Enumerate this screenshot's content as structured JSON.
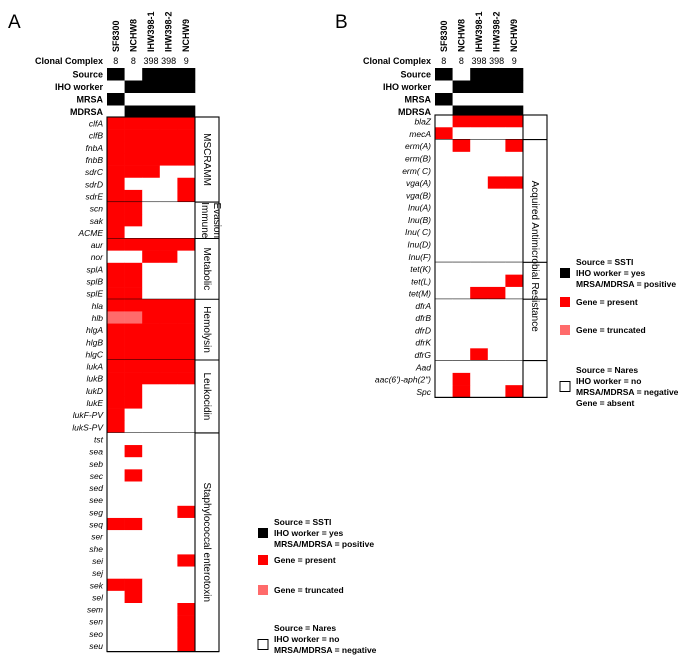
{
  "colors": {
    "present": "#ff0000",
    "truncated": "#ff6b6b",
    "meta": "#000000",
    "absent": "#ffffff"
  },
  "panels": [
    {
      "letter": "A",
      "strains": [
        "SF8300",
        "NCHW8",
        "IHW398-1",
        "IHW398-2",
        "NCHW9"
      ],
      "clonal_complex": {
        "label": "Clonal Complex",
        "values": [
          "8",
          "8",
          "398",
          "398",
          "9"
        ]
      },
      "meta_rows": [
        {
          "label": "Source",
          "values": [
            1,
            0,
            1,
            1,
            1
          ]
        },
        {
          "label": "IHO worker",
          "values": [
            0,
            1,
            1,
            1,
            1
          ]
        },
        {
          "label": "MRSA",
          "values": [
            1,
            0,
            0,
            0,
            0
          ]
        },
        {
          "label": "MDRSA",
          "values": [
            0,
            1,
            1,
            1,
            1
          ]
        }
      ],
      "groups": [
        {
          "label": "MSCRAMM",
          "label2": "",
          "genes": [
            {
              "name": "clfA",
              "v": [
                1,
                1,
                1,
                1,
                1
              ]
            },
            {
              "name": "clfB",
              "v": [
                1,
                1,
                1,
                1,
                1
              ]
            },
            {
              "name": "fnbA",
              "v": [
                1,
                1,
                1,
                1,
                1
              ]
            },
            {
              "name": "fnbB",
              "v": [
                1,
                1,
                1,
                1,
                1
              ]
            },
            {
              "name": "sdrC",
              "v": [
                1,
                1,
                1,
                0,
                0
              ]
            },
            {
              "name": "sdrD",
              "v": [
                1,
                0,
                0,
                0,
                1
              ]
            },
            {
              "name": "sdrE",
              "v": [
                1,
                1,
                0,
                0,
                1
              ]
            }
          ]
        },
        {
          "label": "Immune",
          "label2": "Evasion",
          "genes": [
            {
              "name": "scn",
              "v": [
                1,
                1,
                0,
                0,
                0
              ]
            },
            {
              "name": "sak",
              "v": [
                1,
                1,
                0,
                0,
                0
              ]
            },
            {
              "name": "ACME",
              "v": [
                1,
                0,
                0,
                0,
                0
              ]
            }
          ]
        },
        {
          "label": "Metabolic",
          "label2": "",
          "genes": [
            {
              "name": "aur",
              "v": [
                1,
                1,
                1,
                1,
                1
              ]
            },
            {
              "name": "nor",
              "v": [
                0,
                0,
                1,
                1,
                0
              ]
            },
            {
              "name": "splA",
              "v": [
                1,
                1,
                0,
                0,
                0
              ]
            },
            {
              "name": "splB",
              "v": [
                1,
                1,
                0,
                0,
                0
              ]
            },
            {
              "name": "splE",
              "v": [
                1,
                1,
                0,
                0,
                0
              ]
            }
          ]
        },
        {
          "label": "Hemolysin",
          "label2": "",
          "genes": [
            {
              "name": "hla",
              "v": [
                1,
                1,
                1,
                1,
                1
              ]
            },
            {
              "name": "hlb",
              "v": [
                2,
                2,
                1,
                1,
                1
              ]
            },
            {
              "name": "hlgA",
              "v": [
                1,
                1,
                1,
                1,
                1
              ]
            },
            {
              "name": "hlgB",
              "v": [
                1,
                1,
                1,
                1,
                1
              ]
            },
            {
              "name": "hlgC",
              "v": [
                1,
                1,
                1,
                1,
                1
              ]
            }
          ]
        },
        {
          "label": "Leukocidin",
          "label2": "",
          "genes": [
            {
              "name": "lukA",
              "v": [
                1,
                1,
                1,
                1,
                1
              ]
            },
            {
              "name": "lukB",
              "v": [
                1,
                1,
                1,
                1,
                1
              ]
            },
            {
              "name": "lukD",
              "v": [
                1,
                1,
                0,
                0,
                0
              ]
            },
            {
              "name": "lukE",
              "v": [
                1,
                1,
                0,
                0,
                0
              ]
            },
            {
              "name": "lukF-PV",
              "v": [
                1,
                0,
                0,
                0,
                0
              ]
            },
            {
              "name": "lukS-PV",
              "v": [
                1,
                0,
                0,
                0,
                0
              ]
            }
          ]
        },
        {
          "label": "Staphylococcal enterotoxin",
          "label2": "",
          "genes": [
            {
              "name": "tst",
              "v": [
                0,
                0,
                0,
                0,
                0
              ]
            },
            {
              "name": "sea",
              "v": [
                0,
                1,
                0,
                0,
                0
              ]
            },
            {
              "name": "seb",
              "v": [
                0,
                0,
                0,
                0,
                0
              ]
            },
            {
              "name": "sec",
              "v": [
                0,
                1,
                0,
                0,
                0
              ]
            },
            {
              "name": "sed",
              "v": [
                0,
                0,
                0,
                0,
                0
              ]
            },
            {
              "name": "see",
              "v": [
                0,
                0,
                0,
                0,
                0
              ]
            },
            {
              "name": "seg",
              "v": [
                0,
                0,
                0,
                0,
                1
              ]
            },
            {
              "name": "seq",
              "v": [
                1,
                1,
                0,
                0,
                0
              ]
            },
            {
              "name": "ser",
              "v": [
                0,
                0,
                0,
                0,
                0
              ]
            },
            {
              "name": "she",
              "v": [
                0,
                0,
                0,
                0,
                0
              ]
            },
            {
              "name": "sei",
              "v": [
                0,
                0,
                0,
                0,
                1
              ]
            },
            {
              "name": "sej",
              "v": [
                0,
                0,
                0,
                0,
                0
              ]
            },
            {
              "name": "sek",
              "v": [
                1,
                1,
                0,
                0,
                0
              ]
            },
            {
              "name": "sel",
              "v": [
                0,
                1,
                0,
                0,
                0
              ]
            },
            {
              "name": "sem",
              "v": [
                0,
                0,
                0,
                0,
                1
              ]
            },
            {
              "name": "sen",
              "v": [
                0,
                0,
                0,
                0,
                1
              ]
            },
            {
              "name": "seo",
              "v": [
                0,
                0,
                0,
                0,
                1
              ]
            },
            {
              "name": "seu",
              "v": [
                0,
                0,
                0,
                0,
                1
              ]
            }
          ]
        }
      ]
    },
    {
      "letter": "B",
      "strains": [
        "SF8300",
        "NCHW8",
        "IHW398-1",
        "IHW398-2",
        "NCHW9"
      ],
      "clonal_complex": {
        "label": "Clonal Complex",
        "values": [
          "8",
          "8",
          "398",
          "398",
          "9"
        ]
      },
      "meta_rows": [
        {
          "label": "Source",
          "values": [
            1,
            0,
            1,
            1,
            1
          ]
        },
        {
          "label": "IHO worker",
          "values": [
            0,
            1,
            1,
            1,
            1
          ]
        },
        {
          "label": "MRSA",
          "values": [
            1,
            0,
            0,
            0,
            0
          ]
        },
        {
          "label": "MDRSA",
          "values": [
            0,
            1,
            1,
            1,
            1
          ]
        }
      ],
      "side_label": "Acquired Antimicrobial Resistance",
      "groups": [
        {
          "genes": [
            {
              "name": "blaZ",
              "v": [
                0,
                1,
                1,
                1,
                1
              ]
            },
            {
              "name": "mecA",
              "v": [
                1,
                0,
                0,
                0,
                0
              ]
            }
          ]
        },
        {
          "genes": [
            {
              "name": "erm(A)",
              "v": [
                0,
                1,
                0,
                0,
                1
              ]
            },
            {
              "name": "erm(B)",
              "v": [
                0,
                0,
                0,
                0,
                0
              ]
            },
            {
              "name": "erm( C)",
              "v": [
                0,
                0,
                0,
                0,
                0
              ]
            },
            {
              "name": "vga(A)",
              "v": [
                0,
                0,
                0,
                1,
                1
              ]
            },
            {
              "name": "vga(B)",
              "v": [
                0,
                0,
                0,
                0,
                0
              ]
            },
            {
              "name": "Inu(A)",
              "v": [
                0,
                0,
                0,
                0,
                0
              ]
            },
            {
              "name": "Inu(B)",
              "v": [
                0,
                0,
                0,
                0,
                0
              ]
            },
            {
              "name": "Inu( C)",
              "v": [
                0,
                0,
                0,
                0,
                0
              ]
            },
            {
              "name": "Inu(D)",
              "v": [
                0,
                0,
                0,
                0,
                0
              ]
            },
            {
              "name": "Inu(F)",
              "v": [
                0,
                0,
                0,
                0,
                0
              ]
            }
          ]
        },
        {
          "genes": [
            {
              "name": "tet(K)",
              "v": [
                0,
                0,
                0,
                0,
                0
              ]
            },
            {
              "name": "tet(L)",
              "v": [
                0,
                0,
                0,
                0,
                1
              ]
            },
            {
              "name": "tet(M)",
              "v": [
                0,
                0,
                1,
                1,
                0
              ]
            }
          ]
        },
        {
          "genes": [
            {
              "name": "dfrA",
              "v": [
                0,
                0,
                0,
                0,
                0
              ]
            },
            {
              "name": "dfrB",
              "v": [
                0,
                0,
                0,
                0,
                0
              ]
            },
            {
              "name": "dfrD",
              "v": [
                0,
                0,
                0,
                0,
                0
              ]
            },
            {
              "name": "dfrK",
              "v": [
                0,
                0,
                0,
                0,
                0
              ]
            },
            {
              "name": "dfrG",
              "v": [
                0,
                0,
                1,
                0,
                0
              ]
            }
          ]
        },
        {
          "genes": [
            {
              "name": "Aad",
              "v": [
                0,
                0,
                0,
                0,
                0
              ]
            },
            {
              "name": "aac(6')-aph(2\")",
              "v": [
                0,
                1,
                0,
                0,
                0
              ]
            },
            {
              "name": "Spc",
              "v": [
                0,
                1,
                0,
                0,
                1
              ]
            }
          ]
        }
      ]
    }
  ],
  "legend": [
    {
      "key": "meta",
      "lines": [
        "Source = SSTI",
        "IHO worker = yes",
        "MRSA/MDRSA = positive"
      ]
    },
    {
      "key": "present",
      "lines": [
        "Gene = present"
      ]
    },
    {
      "key": "truncated",
      "lines": [
        "Gene = truncated"
      ]
    },
    {
      "key": "absent",
      "lines": [
        "Source = Nares",
        "IHO worker = no",
        "MRSA/MDRSA = negative",
        "Gene = absent"
      ]
    }
  ]
}
